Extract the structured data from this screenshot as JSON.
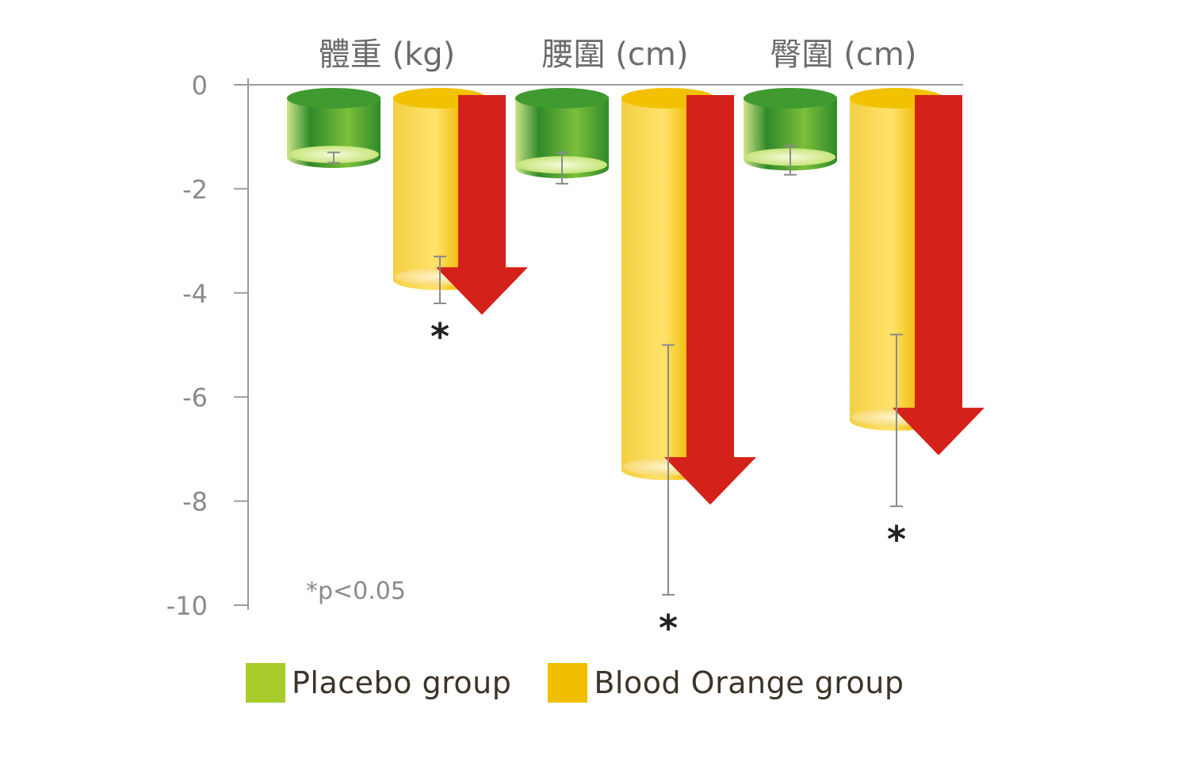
{
  "chart_data": {
    "type": "bar",
    "title": "",
    "xlabel": "",
    "ylabel": "",
    "categories": [
      "體重 (kg)",
      "腰圍 (cm)",
      "臀圍 (cm)"
    ],
    "series": [
      {
        "name": "Placebo group",
        "values": [
          -1.4,
          -1.6,
          -1.45
        ],
        "error": [
          0.1,
          0.3,
          0.28
        ],
        "color": "#a8cc2a"
      },
      {
        "name": "Blood Orange group",
        "values": [
          -3.75,
          -7.4,
          -6.45
        ],
        "error": [
          0.45,
          2.4,
          1.65
        ],
        "color": "#f0bf00"
      }
    ],
    "ylim": [
      -10,
      0
    ],
    "yticks": [
      0,
      -2,
      -4,
      -6,
      -8,
      -10
    ],
    "ytick_labels": [
      "0",
      "-2",
      "-4",
      "-6",
      "-8",
      "-10"
    ],
    "significance_marker": "*",
    "significant_series": "Blood Orange group",
    "annotation": "*p<0.05",
    "grid": false,
    "legend_position": "bottom",
    "arrow_color": "#d42119"
  }
}
